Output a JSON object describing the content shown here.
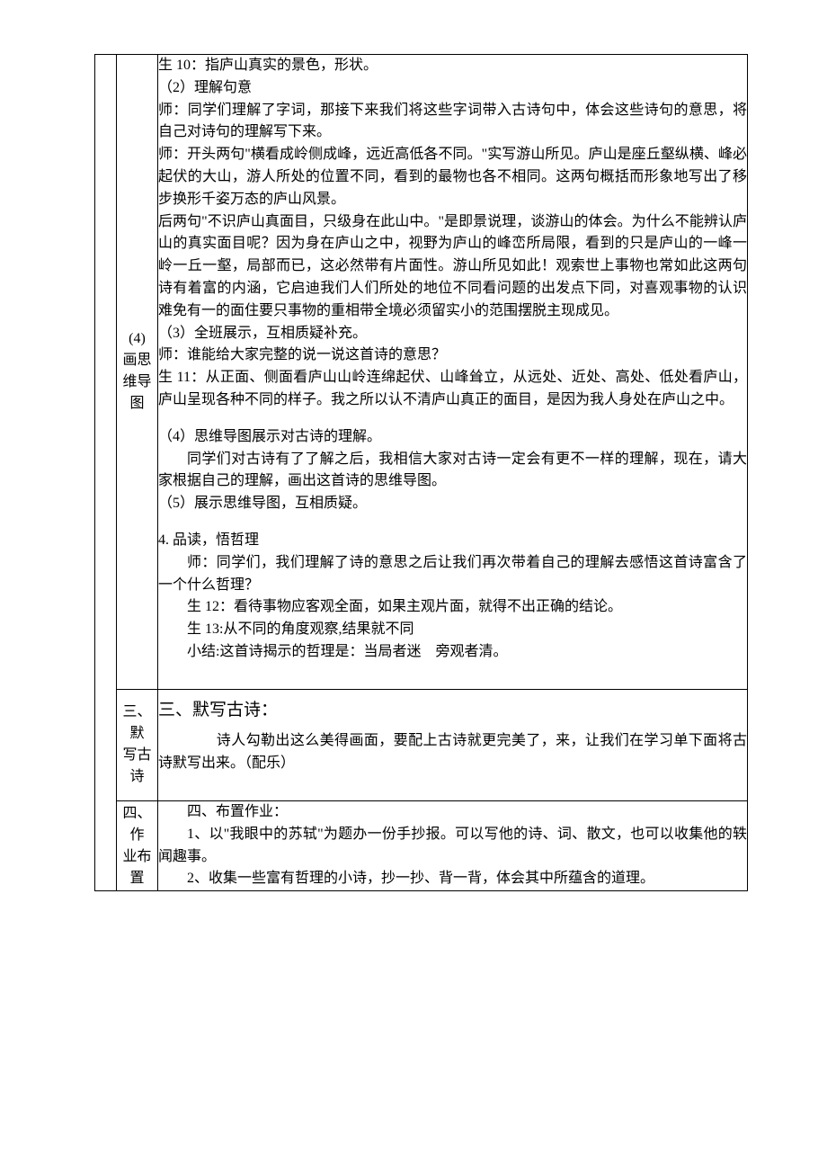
{
  "colors": {
    "text": "#000000",
    "background": "#ffffff",
    "border": "#000000"
  },
  "typography": {
    "body_family": "SimSun",
    "body_size_pt": 12,
    "heading_size_pt": 14,
    "line_height": 1.55
  },
  "cells": {
    "c1": {
      "label_lines": [
        "(4)",
        "画思",
        "维导",
        "图"
      ],
      "paras": [
        {
          "cls": "p no-indent",
          "text": "生 10：指庐山真实的景色，形状。"
        },
        {
          "cls": "p no-indent",
          "text": "（2）理解句意"
        },
        {
          "cls": "p no-indent",
          "text": "师：同学们理解了字词，那接下来我们将这些字词带入古诗句中，体会这些诗句的意思，将自己对诗句的理解写下来。"
        },
        {
          "cls": "p no-indent",
          "text": "师：开头两句\"横看成岭侧成峰，远近高低各不同。\"实写游山所见。庐山是座丘壑纵横、峰必起伏的大山，游人所处的位置不同，看到的最物也各不相同。这两句概括而形象地写出了移步换形千姿万态的庐山风景。"
        },
        {
          "cls": "p no-indent",
          "text": "后两句\"不识庐山真面目，只级身在此山中。\"是即景说理，谈游山的体会。为什么不能辨认庐山的真实面目呢？因为身在庐山之中，视野为庐山的峰峦所局限，看到的只是庐山的一峰一岭一丘一壑，局部而已，这必然带有片面性。游山所见如此！观索世上事物也常如此这两句诗有着富的内涵，它启迪我们人们所处的地位不同看问题的出发点下同，对喜观事物的认识难免有一的面住要只事物的重相带全境必须留实小的范围摆脱主现成见。"
        },
        {
          "cls": "p no-indent",
          "text": "（3）全班展示，互相质疑补充。"
        },
        {
          "cls": "p no-indent",
          "text": "师：谁能给大家完整的说一说这首诗的意思？"
        },
        {
          "cls": "p no-indent",
          "text": "生 11：从正面、侧面看庐山山岭连绵起伏、山峰耸立，从远处、近处、高处、低处看庐山，庐山呈现各种不同的样子。我之所以认不清庐山真正的面目，是因为我人身处在庐山之中。"
        },
        {
          "cls": "p no-indent spaced-before",
          "text": "（4）思维导图展示对古诗的理解。"
        },
        {
          "cls": "p",
          "text": "同学们对古诗有了了解之后，我相信大家对古诗一定会有更不一样的理解，现在，请大家根据自己的理解，画出这首诗的思维导图。"
        },
        {
          "cls": "p no-indent",
          "text": "（5）展示思维导图，互相质疑。"
        },
        {
          "cls": "p no-indent spaced-before",
          "text": "4. 品读，悟哲理"
        },
        {
          "cls": "p",
          "text": "师：同学们，我们理解了诗的意思之后让我们再次带着自己的理解去感悟这首诗富含了一个什么哲理？"
        },
        {
          "cls": "p",
          "text": "生 12：看待事物应客观全面，如果主观片面，就得不出正确的结论。"
        },
        {
          "cls": "p",
          "text": "生 13:从不同的角度观察,结果就不同"
        },
        {
          "cls": "p spaced-after",
          "text": "小结:这首诗揭示的哲理是：当局者迷　旁观者清。"
        }
      ]
    },
    "c2": {
      "label_lines": [
        "三、默",
        "写古",
        "诗"
      ],
      "paras": [
        {
          "cls": "sect-head",
          "text": "三、默写古诗："
        },
        {
          "cls": "p spaced-after",
          "text": "　　诗人勾勒出这么美得画面，要配上古诗就更完美了，来，让我们在学习单下面将古诗默写出来。（配乐）"
        }
      ]
    },
    "c3": {
      "label_lines": [
        "四、作",
        "业布",
        "置"
      ],
      "paras": [
        {
          "cls": "p",
          "text": "四、布置作业："
        },
        {
          "cls": "p",
          "text": "1、以\"我眼中的苏轼\"为题办一份手抄报。可以写他的诗、词、散文，也可以收集他的轶闻趣事。"
        },
        {
          "cls": "p",
          "text": "2、收集一些富有哲理的小诗，抄一抄、背一背，体会其中所蕴含的道理。"
        }
      ]
    }
  }
}
